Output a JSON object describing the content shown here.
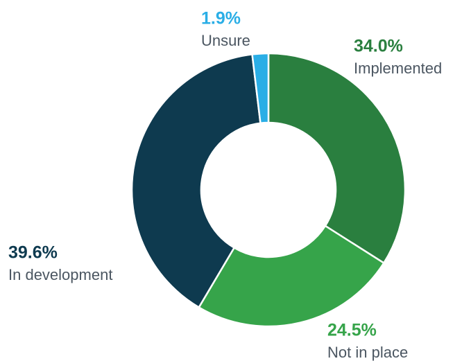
{
  "chart_data": {
    "type": "pie",
    "donut": true,
    "categories": [
      "Implemented",
      "Not in place",
      "In development",
      "Unsure"
    ],
    "values": [
      34.0,
      24.5,
      39.6,
      1.9
    ],
    "value_labels": [
      "34.0%",
      "24.5%",
      "39.6%",
      "1.9%"
    ],
    "colors": [
      "#2a7f3f",
      "#36a44a",
      "#0e3a4f",
      "#2aaee6"
    ]
  }
}
